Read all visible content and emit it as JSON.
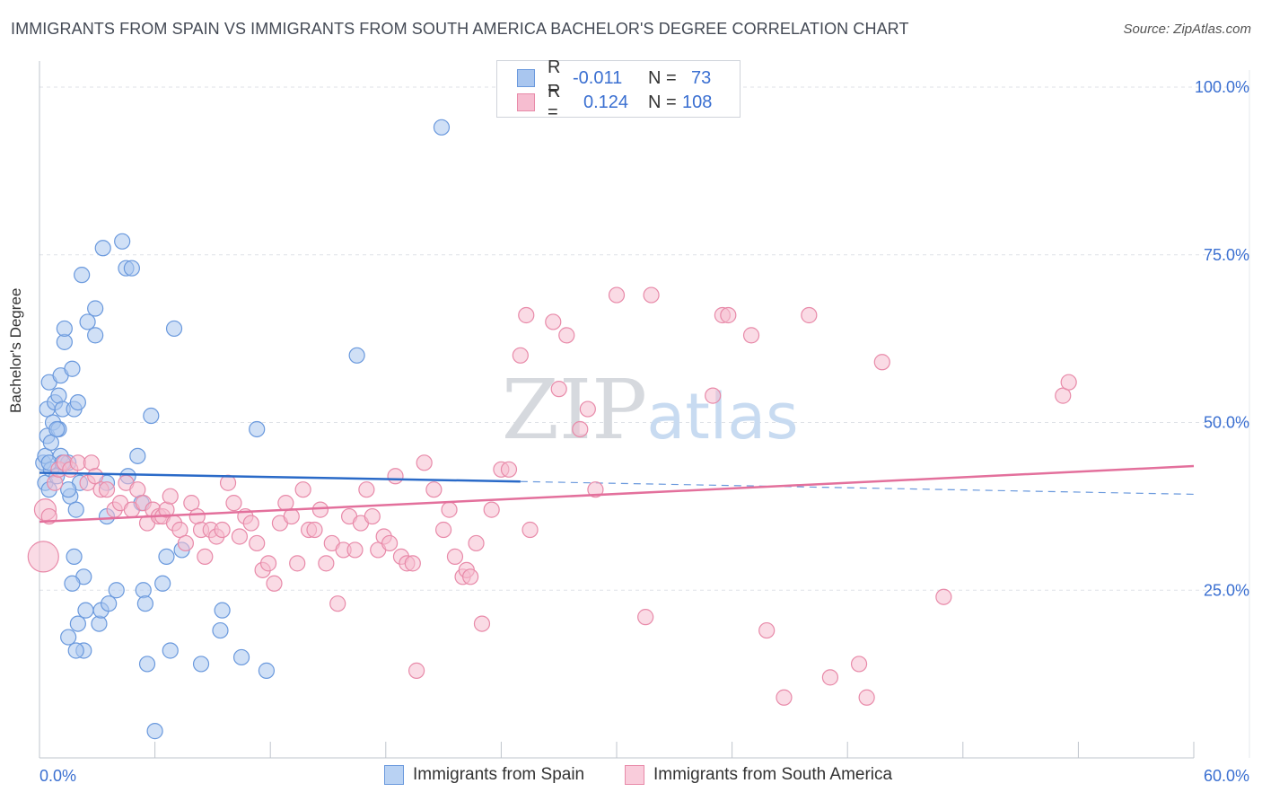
{
  "title": "IMMIGRANTS FROM SPAIN VS IMMIGRANTS FROM SOUTH AMERICA BACHELOR'S DEGREE CORRELATION CHART",
  "source": "Source: ZipAtlas.com",
  "watermark": {
    "zip": "ZIP",
    "atlas": "atlas"
  },
  "legend": {
    "r_label": "R =",
    "n_label": "N =",
    "series": [
      {
        "r": "-0.011",
        "n": "73",
        "color": "#a9c6ef",
        "border": "#6a99dd"
      },
      {
        "r": "0.124",
        "n": "108",
        "color": "#f6bdd0",
        "border": "#e88aa9"
      }
    ]
  },
  "bottom_legend": [
    "Immigrants from Spain",
    "Immigrants from South America"
  ],
  "chart_data": {
    "type": "scatter",
    "title": "IMMIGRANTS FROM SPAIN VS IMMIGRANTS FROM SOUTH AMERICA BACHELOR'S DEGREE CORRELATION CHART",
    "xlabel": "",
    "ylabel": "Bachelor's Degree",
    "xlim": [
      0,
      60
    ],
    "ylim": [
      0,
      105
    ],
    "x_tick_labels": [
      "0.0%",
      "60.0%"
    ],
    "y_ticks": [
      25,
      50,
      75,
      100
    ],
    "y_tick_labels": [
      "25.0%",
      "50.0%",
      "75.0%",
      "100.0%"
    ],
    "grid": true,
    "series": [
      {
        "name": "Immigrants from Spain",
        "color": "#a9c6ef",
        "stroke": "#6a99dd",
        "line_color": "#2a6ac8",
        "trend": {
          "x0": 0,
          "y0": 42.5,
          "x1": 25,
          "y1": 41.2,
          "dash_x1": 60,
          "dash_y1": 39.3
        },
        "points": [
          [
            0.2,
            44
          ],
          [
            0.3,
            41
          ],
          [
            0.3,
            45
          ],
          [
            0.4,
            52
          ],
          [
            0.4,
            48
          ],
          [
            0.5,
            56
          ],
          [
            0.5,
            40
          ],
          [
            0.6,
            43
          ],
          [
            0.6,
            47
          ],
          [
            0.7,
            50
          ],
          [
            0.8,
            53
          ],
          [
            0.9,
            42
          ],
          [
            1.0,
            54
          ],
          [
            1.0,
            49
          ],
          [
            1.1,
            57
          ],
          [
            1.1,
            45
          ],
          [
            1.2,
            52
          ],
          [
            1.3,
            62
          ],
          [
            1.3,
            64
          ],
          [
            1.5,
            44
          ],
          [
            1.6,
            39
          ],
          [
            1.7,
            58
          ],
          [
            1.8,
            52
          ],
          [
            1.9,
            37
          ],
          [
            2.0,
            53
          ],
          [
            2.1,
            41
          ],
          [
            2.2,
            72
          ],
          [
            2.3,
            27
          ],
          [
            2.5,
            65
          ],
          [
            2.9,
            67
          ],
          [
            2.9,
            63
          ],
          [
            3.3,
            76
          ],
          [
            3.5,
            36
          ],
          [
            4.3,
            77
          ],
          [
            4.5,
            73
          ],
          [
            1.8,
            30
          ],
          [
            1.7,
            26
          ],
          [
            2.4,
            22
          ],
          [
            2.0,
            20
          ],
          [
            2.3,
            16
          ],
          [
            1.5,
            18
          ],
          [
            1.9,
            16
          ],
          [
            3.1,
            20
          ],
          [
            3.2,
            22
          ],
          [
            3.6,
            23
          ],
          [
            4.0,
            25
          ],
          [
            4.8,
            73
          ],
          [
            5.1,
            45
          ],
          [
            5.3,
            38
          ],
          [
            5.4,
            25
          ],
          [
            5.5,
            23
          ],
          [
            5.6,
            14
          ],
          [
            6.0,
            4
          ],
          [
            5.8,
            51
          ],
          [
            6.4,
            26
          ],
          [
            6.6,
            30
          ],
          [
            6.8,
            16
          ],
          [
            7.0,
            64
          ],
          [
            7.4,
            31
          ],
          [
            8.4,
            14
          ],
          [
            9.5,
            22
          ],
          [
            9.4,
            19
          ],
          [
            10.5,
            15
          ],
          [
            11.3,
            49
          ],
          [
            11.8,
            13
          ],
          [
            16.5,
            60
          ],
          [
            20.9,
            94
          ],
          [
            4.6,
            42
          ],
          [
            3.5,
            41
          ],
          [
            0.5,
            44
          ],
          [
            0.9,
            49
          ],
          [
            1.2,
            44
          ],
          [
            1.5,
            40
          ]
        ]
      },
      {
        "name": "Immigrants from South America",
        "color": "#f6bdd0",
        "stroke": "#e88aa9",
        "line_color": "#e3709c",
        "trend": {
          "x0": 0,
          "y0": 35.2,
          "x1": 60,
          "y1": 43.5
        },
        "points": [
          [
            0.2,
            30
          ],
          [
            0.3,
            37
          ],
          [
            0.5,
            36
          ],
          [
            0.8,
            41
          ],
          [
            1.0,
            43
          ],
          [
            1.3,
            44
          ],
          [
            1.6,
            43
          ],
          [
            2.0,
            44
          ],
          [
            2.5,
            41
          ],
          [
            2.7,
            44
          ],
          [
            2.9,
            42
          ],
          [
            3.2,
            40
          ],
          [
            3.5,
            40
          ],
          [
            3.9,
            37
          ],
          [
            4.2,
            38
          ],
          [
            4.5,
            41
          ],
          [
            4.8,
            37
          ],
          [
            5.1,
            40
          ],
          [
            5.4,
            38
          ],
          [
            5.6,
            35
          ],
          [
            5.9,
            37
          ],
          [
            6.2,
            36
          ],
          [
            6.4,
            36
          ],
          [
            6.6,
            37
          ],
          [
            6.8,
            39
          ],
          [
            7.0,
            35
          ],
          [
            7.3,
            34
          ],
          [
            7.6,
            32
          ],
          [
            7.9,
            38
          ],
          [
            8.2,
            36
          ],
          [
            8.4,
            34
          ],
          [
            8.6,
            30
          ],
          [
            8.9,
            34
          ],
          [
            9.2,
            33
          ],
          [
            9.5,
            34
          ],
          [
            9.8,
            41
          ],
          [
            10.1,
            38
          ],
          [
            10.4,
            33
          ],
          [
            10.7,
            36
          ],
          [
            11.0,
            35
          ],
          [
            11.3,
            32
          ],
          [
            11.6,
            28
          ],
          [
            11.9,
            29
          ],
          [
            12.2,
            26
          ],
          [
            12.5,
            35
          ],
          [
            12.8,
            38
          ],
          [
            13.1,
            36
          ],
          [
            13.4,
            29
          ],
          [
            13.7,
            40
          ],
          [
            14.0,
            34
          ],
          [
            14.3,
            34
          ],
          [
            14.6,
            37
          ],
          [
            14.9,
            29
          ],
          [
            15.2,
            32
          ],
          [
            15.5,
            23
          ],
          [
            15.8,
            31
          ],
          [
            16.1,
            36
          ],
          [
            16.4,
            31
          ],
          [
            16.7,
            35
          ],
          [
            17.0,
            40
          ],
          [
            17.3,
            36
          ],
          [
            17.6,
            31
          ],
          [
            17.9,
            33
          ],
          [
            18.2,
            32
          ],
          [
            18.5,
            42
          ],
          [
            18.8,
            30
          ],
          [
            19.1,
            29
          ],
          [
            19.4,
            29
          ],
          [
            20.0,
            44
          ],
          [
            20.5,
            40
          ],
          [
            21.0,
            34
          ],
          [
            21.3,
            37
          ],
          [
            21.6,
            30
          ],
          [
            22.0,
            27
          ],
          [
            22.2,
            28
          ],
          [
            22.4,
            27
          ],
          [
            22.7,
            32
          ],
          [
            23.0,
            20
          ],
          [
            23.5,
            37
          ],
          [
            24.0,
            43
          ],
          [
            24.4,
            43
          ],
          [
            25.0,
            60
          ],
          [
            25.5,
            34
          ],
          [
            25.3,
            66
          ],
          [
            26.7,
            65
          ],
          [
            27.0,
            55
          ],
          [
            27.4,
            63
          ],
          [
            28.1,
            49
          ],
          [
            28.5,
            52
          ],
          [
            28.9,
            40
          ],
          [
            30.0,
            69
          ],
          [
            31.5,
            21
          ],
          [
            31.8,
            69
          ],
          [
            35.0,
            54
          ],
          [
            35.5,
            66
          ],
          [
            35.8,
            66
          ],
          [
            37.0,
            63
          ],
          [
            37.8,
            19
          ],
          [
            38.7,
            9
          ],
          [
            40.0,
            66
          ],
          [
            41.1,
            12
          ],
          [
            42.6,
            14
          ],
          [
            43.0,
            9
          ],
          [
            43.8,
            59
          ],
          [
            47.0,
            24
          ],
          [
            53.2,
            54
          ],
          [
            53.5,
            56
          ],
          [
            19.6,
            13
          ]
        ]
      }
    ]
  }
}
